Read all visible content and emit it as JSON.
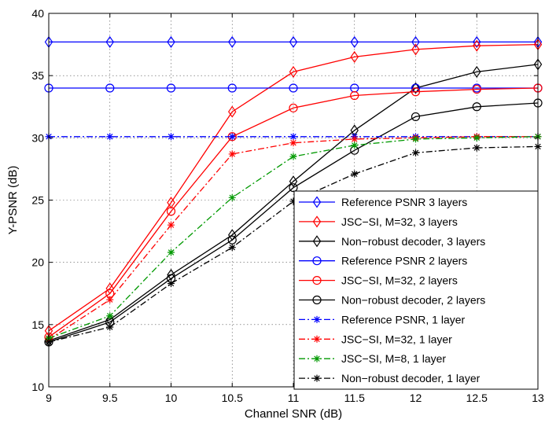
{
  "chart_data": {
    "type": "line",
    "title": "",
    "xlabel": "Channel SNR (dB)",
    "ylabel": "Y-PSNR (dB)",
    "xlim": [
      9,
      13
    ],
    "ylim": [
      10,
      40
    ],
    "xticks": [
      9,
      9.5,
      10,
      10.5,
      11,
      11.5,
      12,
      12.5,
      13
    ],
    "yticks": [
      10,
      15,
      20,
      25,
      30,
      35,
      40
    ],
    "grid": true,
    "legend_position": "bottom-right",
    "x": [
      9,
      9.5,
      10,
      10.5,
      11,
      11.5,
      12,
      12.5,
      13
    ],
    "series": [
      {
        "name": "Reference PSNR 3 layers",
        "color": "#0000ff",
        "dash": "solid",
        "marker": "diamond",
        "values": [
          37.7,
          37.7,
          37.7,
          37.7,
          37.7,
          37.7,
          37.7,
          37.7,
          37.7
        ]
      },
      {
        "name": "JSC−SI, M=32, 3 layers",
        "color": "#ff0000",
        "dash": "solid",
        "marker": "diamond",
        "values": [
          14.5,
          17.9,
          24.8,
          32.1,
          35.3,
          36.5,
          37.1,
          37.4,
          37.5
        ]
      },
      {
        "name": "Non−robust decoder, 3 layers",
        "color": "#000000",
        "dash": "solid",
        "marker": "diamond",
        "values": [
          13.7,
          15.4,
          19.0,
          22.2,
          26.5,
          30.6,
          34.0,
          35.3,
          35.9
        ]
      },
      {
        "name": "Reference PSNR 2 layers",
        "color": "#0000ff",
        "dash": "solid",
        "marker": "circle",
        "values": [
          34.0,
          34.0,
          34.0,
          34.0,
          34.0,
          34.0,
          34.0,
          34.0,
          34.0
        ]
      },
      {
        "name": "JSC−SI, M=32, 2 layers",
        "color": "#ff0000",
        "dash": "solid",
        "marker": "circle",
        "values": [
          14.0,
          17.5,
          24.1,
          30.1,
          32.4,
          33.4,
          33.7,
          33.9,
          34.0
        ]
      },
      {
        "name": "Non−robust decoder, 2 layers",
        "color": "#000000",
        "dash": "solid",
        "marker": "circle",
        "values": [
          13.6,
          15.2,
          18.7,
          21.8,
          26.0,
          29.0,
          31.7,
          32.5,
          32.8
        ]
      },
      {
        "name": "Reference PSNR, 1 layer",
        "color": "#0000ff",
        "dash": "dashdot",
        "marker": "star",
        "values": [
          30.1,
          30.1,
          30.1,
          30.1,
          30.1,
          30.1,
          30.1,
          30.1,
          30.1
        ]
      },
      {
        "name": "JSC−SI, M=32, 1 layer",
        "color": "#ff0000",
        "dash": "dashdot",
        "marker": "star",
        "values": [
          13.8,
          17.0,
          23.0,
          28.7,
          29.6,
          29.9,
          30.0,
          30.1,
          30.1
        ]
      },
      {
        "name": "JSC−SI, M=8, 1 layer",
        "color": "#009900",
        "dash": "dashdot",
        "marker": "star",
        "values": [
          13.9,
          15.7,
          20.8,
          25.2,
          28.5,
          29.4,
          29.9,
          30.0,
          30.1
        ]
      },
      {
        "name": "Non−robust decoder, 1 layer",
        "color": "#000000",
        "dash": "dashdot",
        "marker": "star",
        "values": [
          13.6,
          14.8,
          18.3,
          21.2,
          24.9,
          27.1,
          28.8,
          29.2,
          29.3
        ]
      }
    ]
  }
}
